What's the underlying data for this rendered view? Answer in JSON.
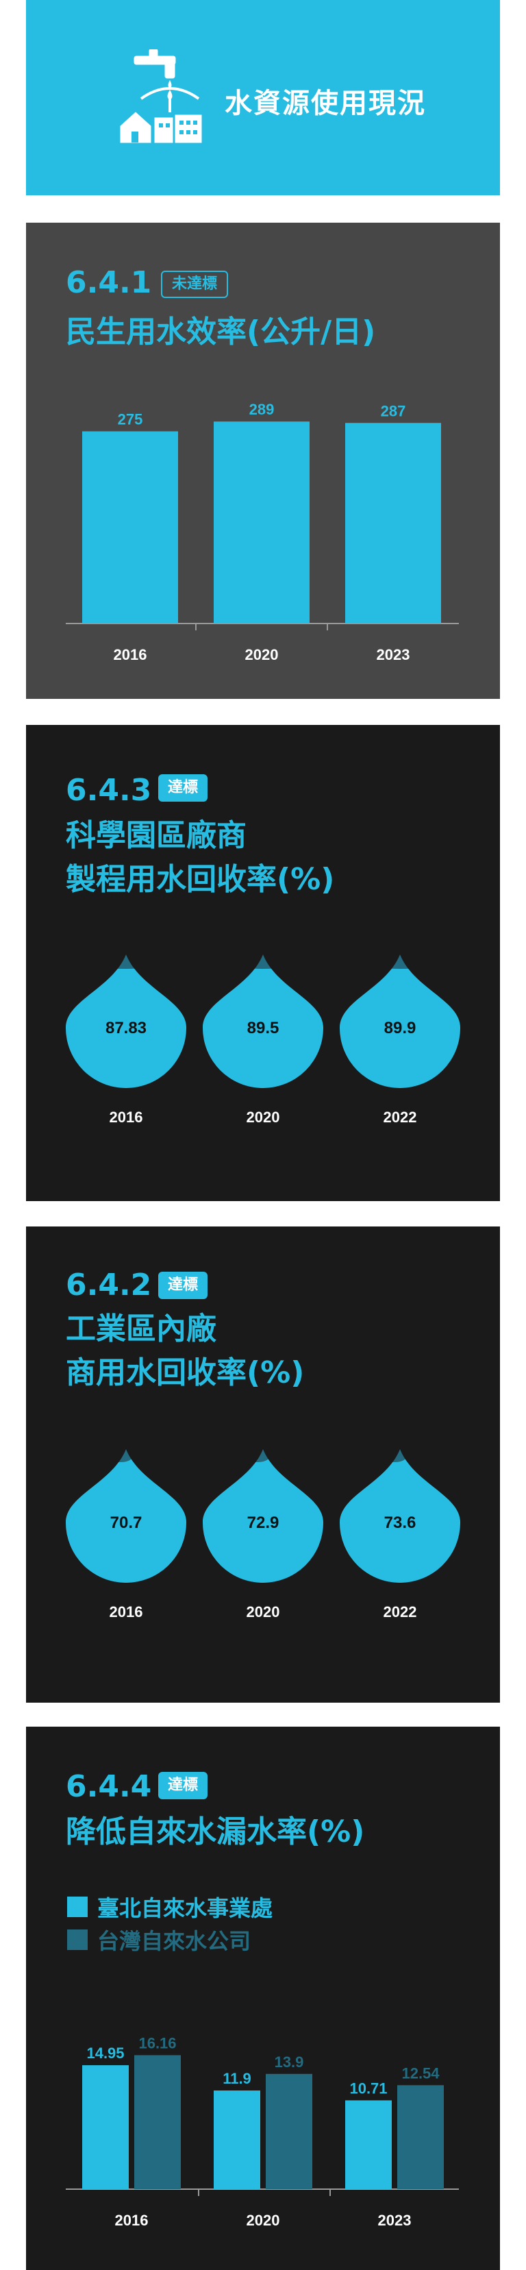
{
  "header": {
    "title": "水資源使用現況",
    "icon": "faucet-houses-icon"
  },
  "colors": {
    "accent": "#27bde2",
    "secondary": "#226b80",
    "panel_gray": "#474747",
    "panel_dark": "#1a1a1a"
  },
  "panels": [
    {
      "code": "6.4.1",
      "status": "未達標",
      "title_lines": [
        "民生用水效率(公升/日)"
      ],
      "chart_data": {
        "type": "bar",
        "categories": [
          "2016",
          "2020",
          "2023"
        ],
        "values": [
          275,
          289,
          287
        ],
        "title": "民生用水效率(公升/日)"
      }
    },
    {
      "code": "6.4.3",
      "status": "達標",
      "title_lines": [
        "科學園區廠商",
        "製程用水回收率(%)"
      ],
      "chart_data": {
        "type": "bar",
        "categories": [
          "2016",
          "2020",
          "2022"
        ],
        "values": [
          87.83,
          89.5,
          89.9
        ],
        "title": "科學園區廠商製程用水回收率(%)",
        "ylim": [
          0,
          100
        ]
      }
    },
    {
      "code": "6.4.2",
      "status": "達標",
      "title_lines": [
        "工業區內廠",
        "商用水回收率(%)"
      ],
      "chart_data": {
        "type": "bar",
        "categories": [
          "2016",
          "2020",
          "2022"
        ],
        "values": [
          70.7,
          72.9,
          73.6
        ],
        "title": "工業區內廠商用水回收率(%)",
        "ylim": [
          0,
          100
        ]
      }
    },
    {
      "code": "6.4.4",
      "status": "達標",
      "title_lines": [
        "降低自來水漏水率(%)"
      ],
      "chart_data": {
        "type": "bar",
        "categories": [
          "2016",
          "2020",
          "2023"
        ],
        "series": [
          {
            "name": "臺北自來水事業處",
            "values": [
              14.95,
              11.9,
              10.71
            ]
          },
          {
            "name": "台灣自來水公司",
            "values": [
              16.16,
              13.9,
              12.54
            ]
          }
        ],
        "title": "降低自來水漏水率(%)"
      }
    }
  ]
}
